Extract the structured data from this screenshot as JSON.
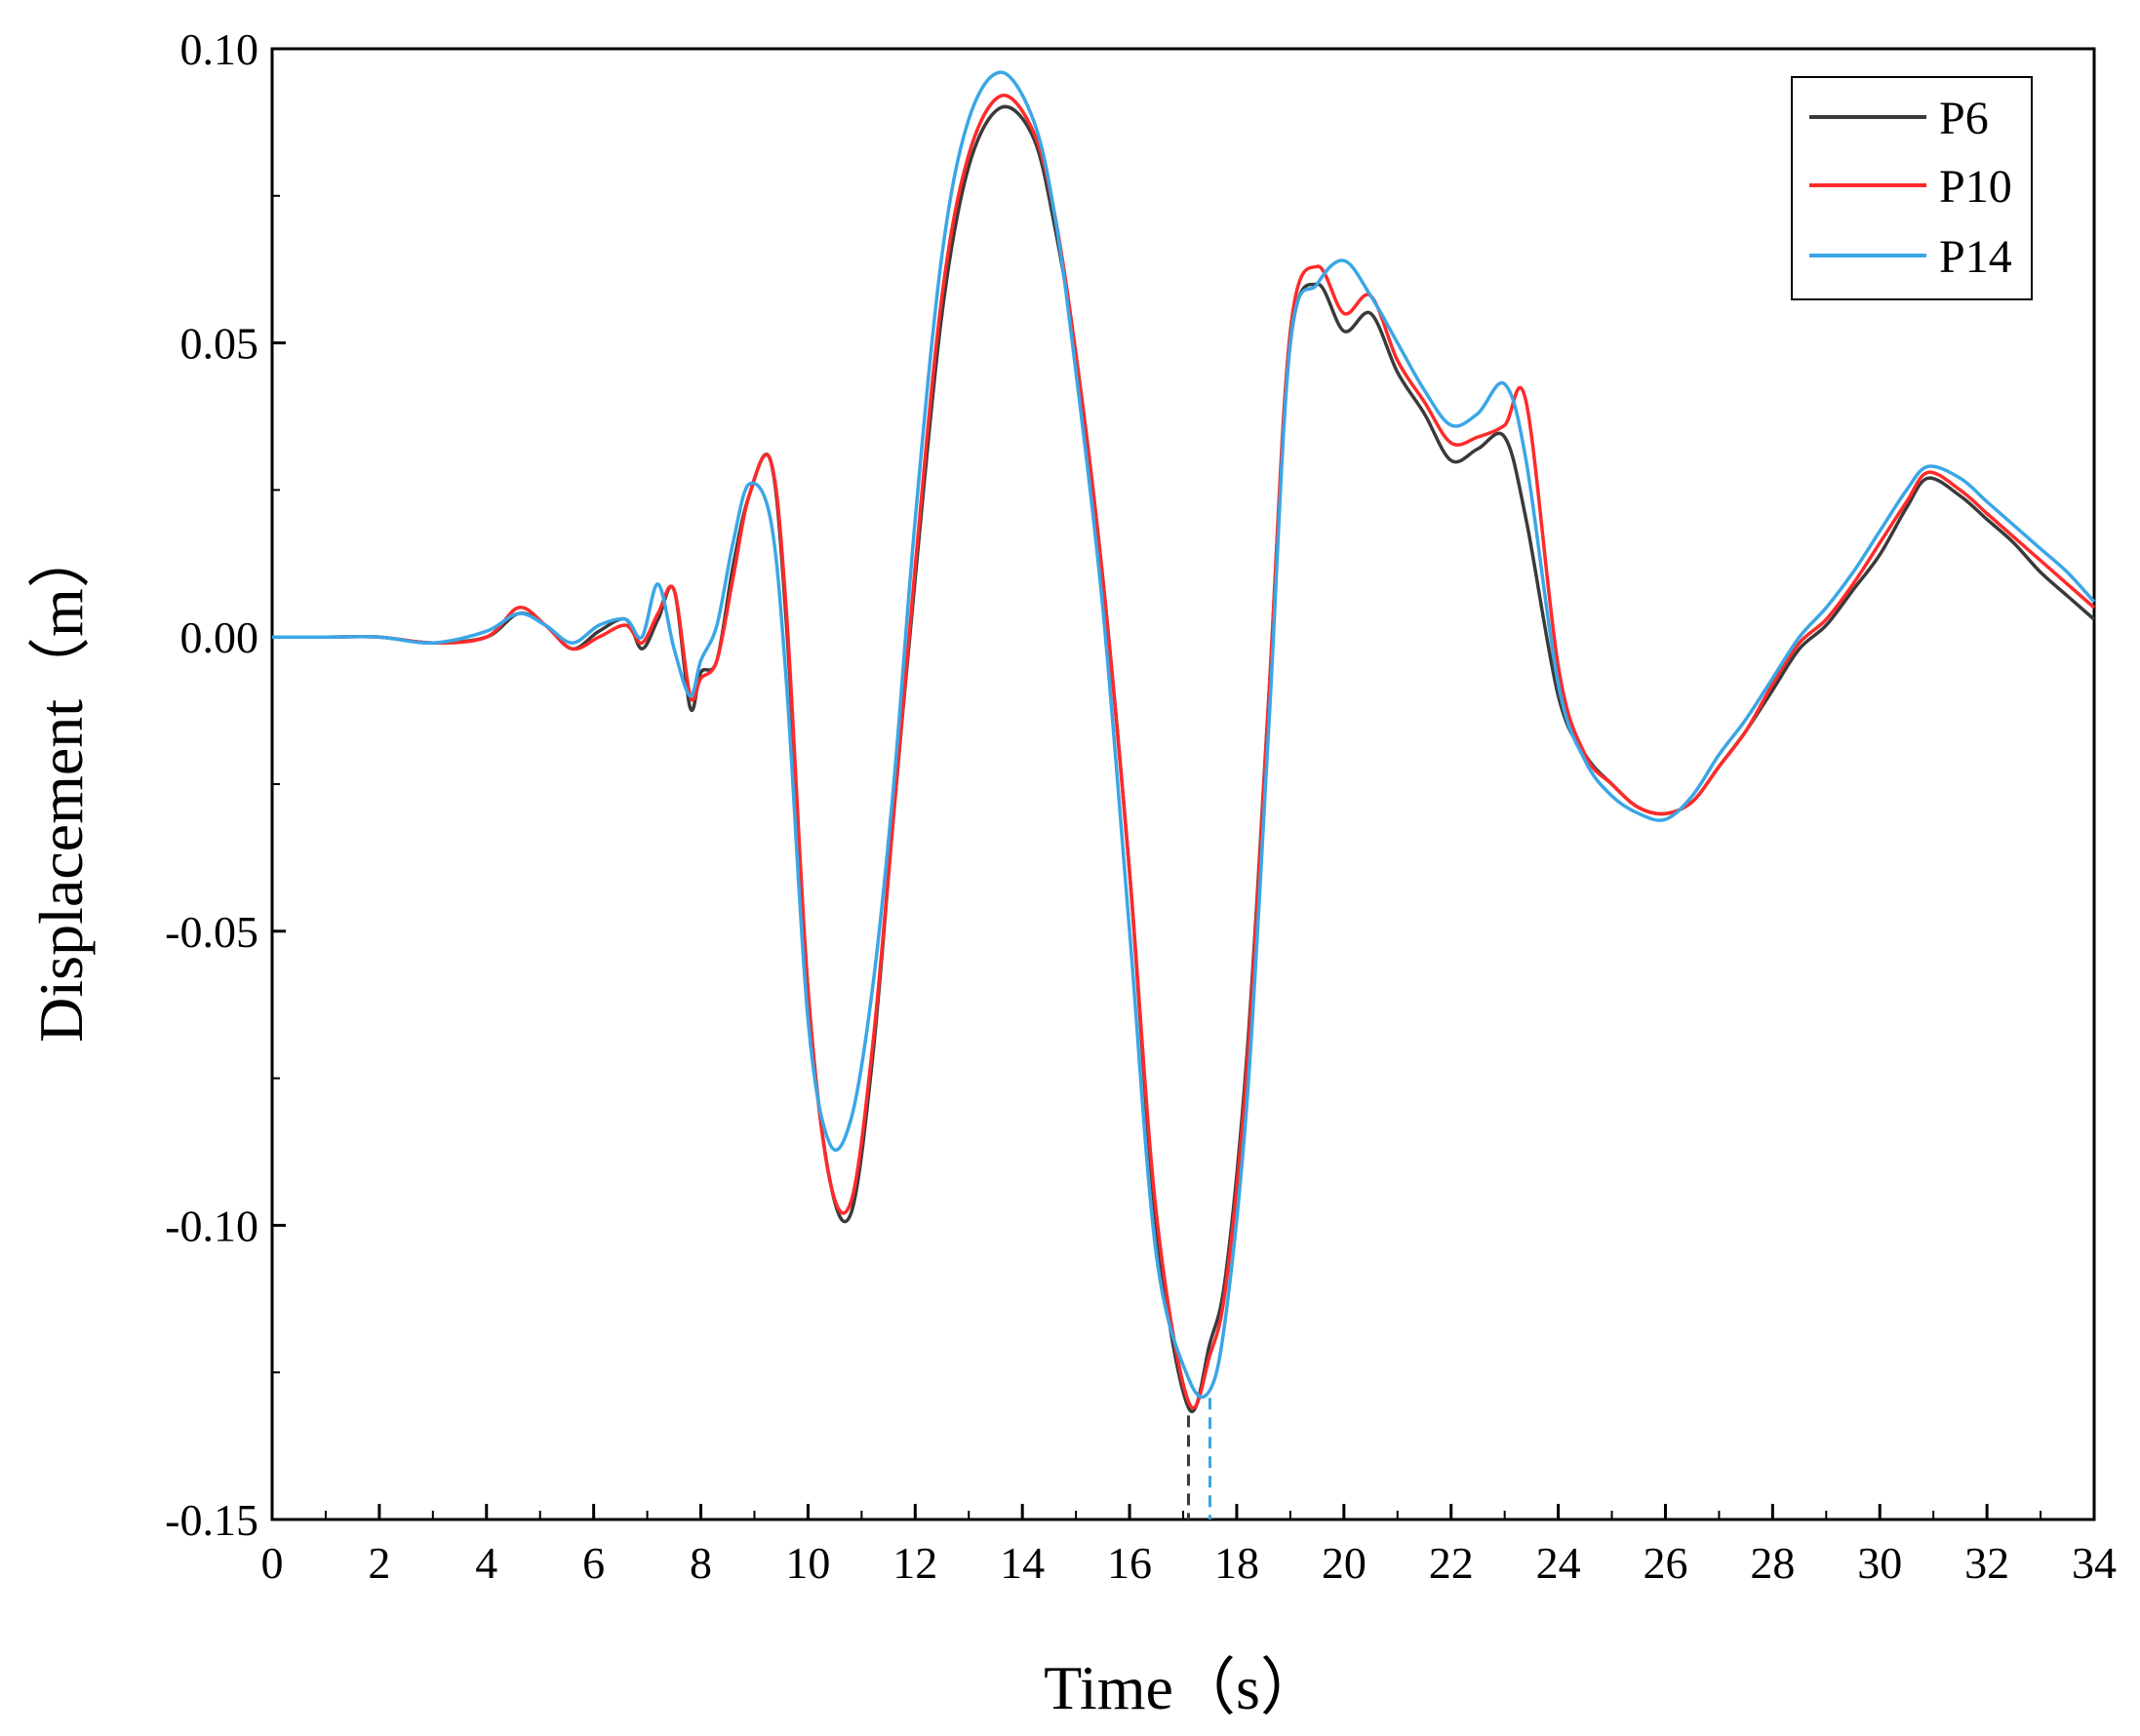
{
  "chart_data": {
    "type": "line",
    "xlabel": "Time（s）",
    "ylabel": "Displacement（m）",
    "xlim": [
      0,
      34
    ],
    "ylim": [
      -0.15,
      0.1
    ],
    "x_ticks": [
      0,
      2,
      4,
      6,
      8,
      10,
      12,
      14,
      16,
      18,
      20,
      22,
      24,
      26,
      28,
      30,
      32,
      34
    ],
    "x_tick_labels": [
      "0",
      "2",
      "4",
      "6",
      "8",
      "10",
      "12",
      "14",
      "16",
      "18",
      "20",
      "22",
      "24",
      "26",
      "28",
      "30",
      "32",
      "34"
    ],
    "y_ticks": [
      0.1,
      0.05,
      0.0,
      -0.05,
      -0.1,
      -0.15
    ],
    "y_tick_labels": [
      "0.10",
      "0.05",
      "0.00",
      "-0.05",
      "-0.10",
      "-0.15"
    ],
    "grid": false,
    "legend_position": "top-right",
    "series": [
      {
        "name": "P6",
        "color": "#3a3a3a",
        "x": [
          0,
          1,
          2,
          3,
          4,
          4.6,
          5.1,
          5.6,
          6.1,
          6.6,
          6.9,
          7.2,
          7.5,
          7.8,
          8.0,
          8.3,
          8.6,
          8.9,
          9.3,
          9.6,
          10.0,
          10.4,
          10.8,
          11.2,
          11.6,
          12.0,
          12.5,
          13.0,
          13.6,
          14.2,
          14.6,
          15.0,
          15.5,
          16.0,
          16.5,
          17.1,
          17.5,
          17.8,
          18.2,
          18.6,
          19.0,
          19.5,
          20.0,
          20.5,
          21.0,
          21.5,
          22.0,
          22.5,
          23.0,
          23.4,
          24.0,
          24.5,
          25.0,
          25.5,
          26.0,
          26.5,
          27.0,
          27.5,
          28.0,
          28.5,
          29.0,
          29.5,
          30.0,
          30.5,
          30.9,
          31.5,
          32.0,
          32.5,
          33.0,
          33.5,
          34.0
        ],
        "y": [
          0.0,
          0.0,
          0.0,
          -0.001,
          0.0,
          0.004,
          0.002,
          -0.002,
          0.001,
          0.003,
          -0.002,
          0.003,
          0.008,
          -0.012,
          -0.006,
          -0.004,
          0.012,
          0.024,
          0.03,
          0.002,
          -0.06,
          -0.092,
          -0.098,
          -0.072,
          -0.03,
          0.01,
          0.055,
          0.08,
          0.09,
          0.085,
          0.07,
          0.048,
          0.01,
          -0.04,
          -0.1,
          -0.131,
          -0.12,
          -0.108,
          -0.07,
          -0.01,
          0.05,
          0.06,
          0.052,
          0.055,
          0.045,
          0.038,
          0.03,
          0.032,
          0.034,
          0.02,
          -0.01,
          -0.02,
          -0.025,
          -0.029,
          -0.03,
          -0.028,
          -0.022,
          -0.016,
          -0.009,
          -0.002,
          0.002,
          0.008,
          0.014,
          0.022,
          0.027,
          0.024,
          0.02,
          0.016,
          0.011,
          0.007,
          0.003
        ]
      },
      {
        "name": "P10",
        "color": "#ff2a2a",
        "x": [
          0,
          1,
          2,
          3,
          4,
          4.6,
          5.1,
          5.6,
          6.1,
          6.6,
          6.9,
          7.2,
          7.5,
          7.8,
          8.0,
          8.3,
          8.6,
          8.9,
          9.3,
          9.6,
          10.0,
          10.4,
          10.8,
          11.2,
          11.6,
          12.0,
          12.5,
          13.0,
          13.6,
          14.2,
          14.6,
          15.0,
          15.5,
          16.0,
          16.5,
          17.1,
          17.5,
          17.8,
          18.2,
          18.6,
          19.0,
          19.5,
          20.0,
          20.5,
          21.0,
          21.5,
          22.0,
          22.5,
          23.0,
          23.4,
          24.0,
          24.5,
          25.0,
          25.5,
          26.0,
          26.5,
          27.0,
          27.5,
          28.0,
          28.5,
          29.0,
          29.5,
          30.0,
          30.5,
          30.9,
          31.5,
          32.0,
          32.5,
          33.0,
          33.5,
          34.0
        ],
        "y": [
          0.0,
          0.0,
          0.0,
          -0.001,
          0.0,
          0.005,
          0.002,
          -0.002,
          0.0,
          0.002,
          -0.001,
          0.004,
          0.008,
          -0.01,
          -0.007,
          -0.004,
          0.01,
          0.024,
          0.03,
          0.004,
          -0.06,
          -0.092,
          -0.096,
          -0.07,
          -0.03,
          0.012,
          0.058,
          0.082,
          0.092,
          0.086,
          0.072,
          0.048,
          0.01,
          -0.04,
          -0.098,
          -0.13,
          -0.122,
          -0.11,
          -0.072,
          -0.01,
          0.052,
          0.063,
          0.055,
          0.058,
          0.047,
          0.04,
          0.033,
          0.034,
          0.036,
          0.04,
          -0.005,
          -0.02,
          -0.025,
          -0.029,
          -0.03,
          -0.028,
          -0.022,
          -0.016,
          -0.008,
          -0.001,
          0.003,
          0.009,
          0.016,
          0.023,
          0.028,
          0.025,
          0.021,
          0.017,
          0.013,
          0.009,
          0.005
        ]
      },
      {
        "name": "P14",
        "color": "#3aa6e6",
        "x": [
          0,
          1,
          2,
          3,
          4,
          4.6,
          5.1,
          5.6,
          6.1,
          6.6,
          6.9,
          7.2,
          7.5,
          7.8,
          8.0,
          8.3,
          8.6,
          8.9,
          9.3,
          9.6,
          10.0,
          10.4,
          10.8,
          11.2,
          11.6,
          12.0,
          12.5,
          13.0,
          13.6,
          14.2,
          14.6,
          15.0,
          15.5,
          16.0,
          16.5,
          17.1,
          17.5,
          17.8,
          18.2,
          18.6,
          19.0,
          19.5,
          20.0,
          20.5,
          21.0,
          21.5,
          22.0,
          22.5,
          23.0,
          23.4,
          24.0,
          24.5,
          25.0,
          25.5,
          26.0,
          26.5,
          27.0,
          27.5,
          28.0,
          28.5,
          29.0,
          29.5,
          30.0,
          30.5,
          30.9,
          31.5,
          32.0,
          32.5,
          33.0,
          33.5,
          34.0
        ],
        "y": [
          0.0,
          0.0,
          0.0,
          -0.001,
          0.001,
          0.004,
          0.002,
          -0.001,
          0.002,
          0.003,
          0.0,
          0.009,
          -0.002,
          -0.01,
          -0.004,
          0.002,
          0.016,
          0.026,
          0.02,
          -0.008,
          -0.065,
          -0.086,
          -0.082,
          -0.06,
          -0.025,
          0.02,
          0.065,
          0.088,
          0.096,
          0.088,
          0.072,
          0.045,
          0.005,
          -0.05,
          -0.105,
          -0.126,
          -0.128,
          -0.115,
          -0.078,
          -0.015,
          0.05,
          0.06,
          0.064,
          0.058,
          0.05,
          0.042,
          0.036,
          0.038,
          0.043,
          0.03,
          -0.008,
          -0.021,
          -0.027,
          -0.03,
          -0.031,
          -0.027,
          -0.02,
          -0.014,
          -0.007,
          0.0,
          0.005,
          0.011,
          0.018,
          0.025,
          0.029,
          0.027,
          0.023,
          0.019,
          0.015,
          0.011,
          0.006
        ]
      }
    ]
  }
}
